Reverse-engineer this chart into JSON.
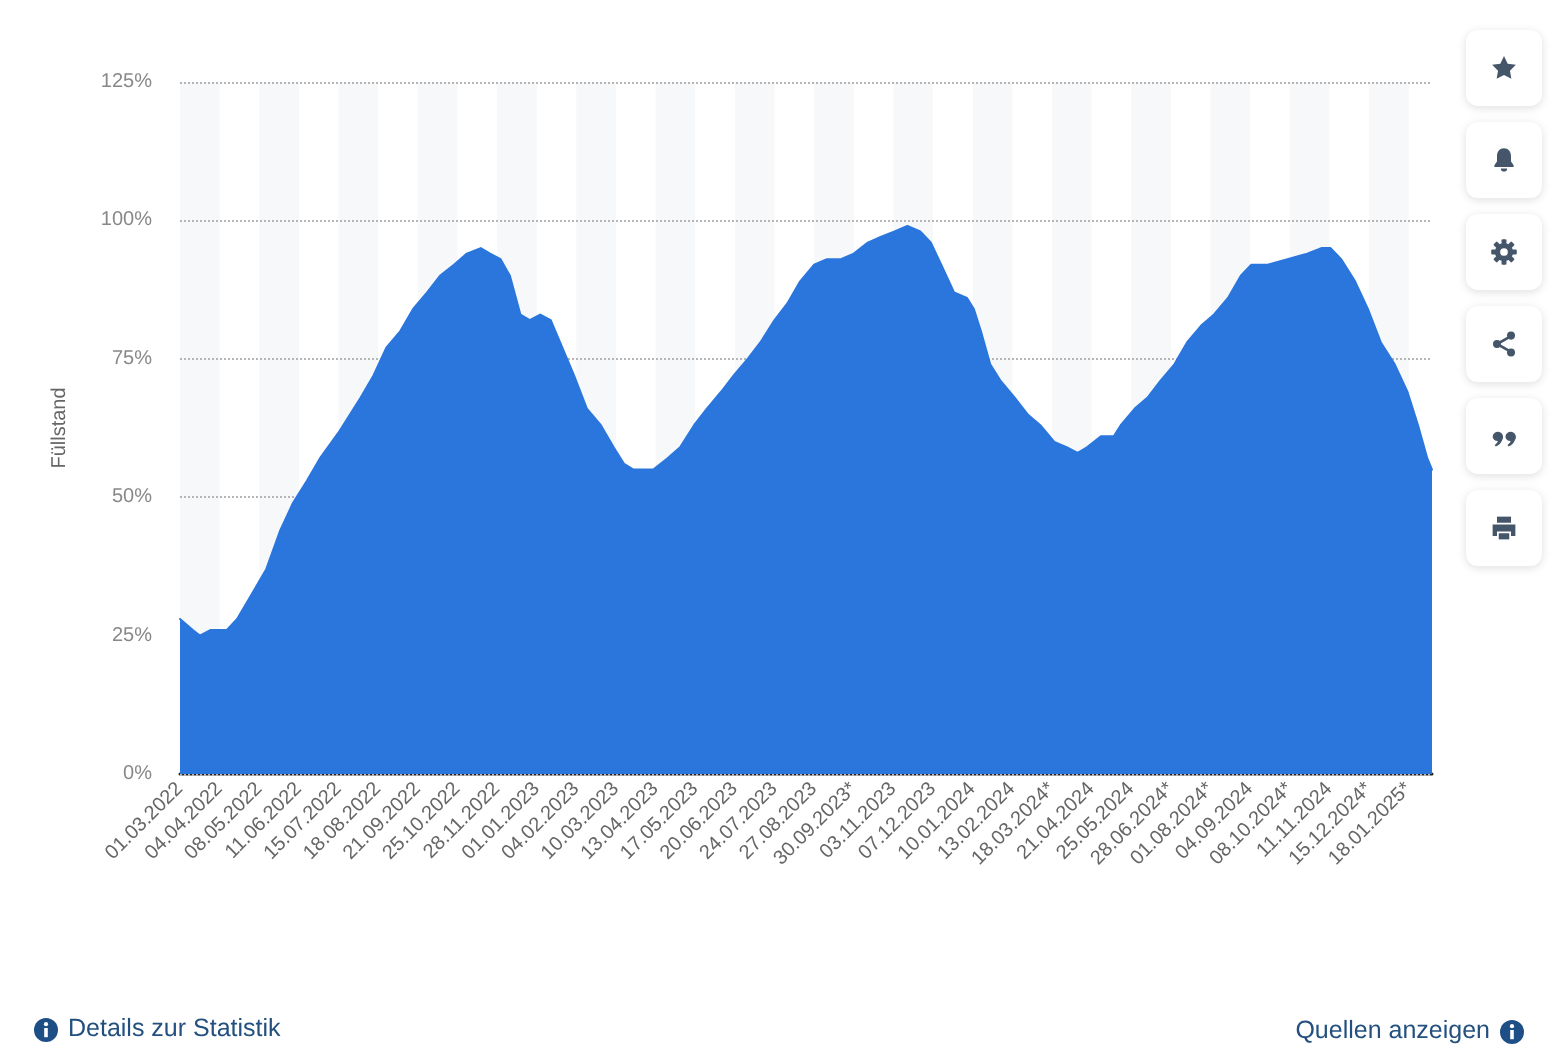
{
  "chart_data": {
    "type": "area",
    "ylabel": "Füllstand",
    "color": "#2a76dd",
    "x": [
      "2022-03-01",
      "2022-03-12",
      "2022-03-18",
      "2022-03-27",
      "2022-04-04",
      "2022-04-10",
      "2022-04-19",
      "2022-05-03",
      "2022-05-14",
      "2022-05-26",
      "2022-06-06",
      "2022-06-18",
      "2022-06-29",
      "2022-07-16",
      "2022-08-03",
      "2022-08-14",
      "2022-08-25",
      "2022-09-06",
      "2022-09-17",
      "2022-09-29",
      "2022-10-10",
      "2022-10-22",
      "2022-11-02",
      "2022-11-14",
      "2022-11-22",
      "2022-12-01",
      "2022-12-09",
      "2022-12-18",
      "2022-12-26",
      "2023-01-04",
      "2023-01-13",
      "2023-01-21",
      "2023-02-02",
      "2023-02-13",
      "2023-02-25",
      "2023-03-08",
      "2023-03-17",
      "2023-03-25",
      "2023-04-06",
      "2023-04-11",
      "2023-04-23",
      "2023-05-04",
      "2023-05-16",
      "2023-05-27",
      "2023-06-08",
      "2023-06-19",
      "2023-07-01",
      "2023-07-12",
      "2023-07-24",
      "2023-08-04",
      "2023-08-15",
      "2023-08-27",
      "2023-09-07",
      "2023-09-19",
      "2023-09-30",
      "2023-10-12",
      "2023-10-23",
      "2023-11-04",
      "2023-11-15",
      "2023-11-26",
      "2023-12-05",
      "2023-12-14",
      "2023-12-25",
      "2024-01-05",
      "2024-01-11",
      "2024-01-17",
      "2024-01-25",
      "2024-02-03",
      "2024-02-15",
      "2024-02-26",
      "2024-03-08",
      "2024-03-20",
      "2024-03-31",
      "2024-04-09",
      "2024-04-17",
      "2024-04-29",
      "2024-05-10",
      "2024-05-16",
      "2024-05-28",
      "2024-06-08",
      "2024-06-19",
      "2024-07-01",
      "2024-07-12",
      "2024-07-24",
      "2024-08-04",
      "2024-08-16",
      "2024-08-27",
      "2024-09-05",
      "2024-09-19",
      "2024-10-06",
      "2024-10-23",
      "2024-11-04",
      "2024-11-12",
      "2024-11-21",
      "2024-12-03",
      "2024-12-14",
      "2024-12-25",
      "2025-01-06",
      "2025-01-17",
      "2025-01-26",
      "2025-02-03",
      "2025-02-07"
    ],
    "values": [
      28,
      26,
      25,
      26,
      26,
      26,
      28,
      33,
      37,
      44,
      49,
      53,
      57,
      62,
      68,
      72,
      77,
      80,
      84,
      87,
      90,
      92,
      94,
      95,
      94,
      93,
      90,
      83,
      82,
      83,
      82,
      78,
      72,
      66,
      63,
      59,
      56,
      55,
      55,
      55,
      57,
      59,
      63,
      66,
      69,
      72,
      75,
      78,
      82,
      85,
      89,
      92,
      93,
      93,
      94,
      96,
      97,
      98,
      99,
      98,
      96,
      92,
      87,
      86,
      84,
      80,
      74,
      71,
      68,
      65,
      63,
      60,
      59,
      58,
      59,
      61,
      61,
      63,
      66,
      68,
      71,
      74,
      78,
      81,
      83,
      86,
      90,
      92,
      92,
      93,
      94,
      95,
      95,
      93,
      89,
      84,
      78,
      74,
      69,
      63,
      57,
      55
    ],
    "xlim": [
      "2022-03-01",
      "2025-02-07"
    ],
    "xticks": [
      {
        "value": "2022-03-01",
        "label": "01.03.2022"
      },
      {
        "value": "2022-04-04",
        "label": "04.04.2022"
      },
      {
        "value": "2022-05-08",
        "label": "08.05.2022"
      },
      {
        "value": "2022-06-11",
        "label": "11.06.2022"
      },
      {
        "value": "2022-07-15",
        "label": "15.07.2022"
      },
      {
        "value": "2022-08-18",
        "label": "18.08.2022"
      },
      {
        "value": "2022-09-21",
        "label": "21.09.2022"
      },
      {
        "value": "2022-10-25",
        "label": "25.10.2022"
      },
      {
        "value": "2022-11-28",
        "label": "28.11.2022"
      },
      {
        "value": "2023-01-01",
        "label": "01.01.2023"
      },
      {
        "value": "2023-02-04",
        "label": "04.02.2023"
      },
      {
        "value": "2023-03-10",
        "label": "10.03.2023"
      },
      {
        "value": "2023-04-13",
        "label": "13.04.2023"
      },
      {
        "value": "2023-05-17",
        "label": "17.05.2023"
      },
      {
        "value": "2023-06-20",
        "label": "20.06.2023"
      },
      {
        "value": "2023-07-24",
        "label": "24.07.2023"
      },
      {
        "value": "2023-08-27",
        "label": "27.08.2023"
      },
      {
        "value": "2023-09-30",
        "label": "30.09.2023*"
      },
      {
        "value": "2023-11-03",
        "label": "03.11.2023"
      },
      {
        "value": "2023-12-07",
        "label": "07.12.2023"
      },
      {
        "value": "2024-01-10",
        "label": "10.01.2024"
      },
      {
        "value": "2024-02-13",
        "label": "13.02.2024"
      },
      {
        "value": "2024-03-18",
        "label": "18.03.2024*"
      },
      {
        "value": "2024-04-21",
        "label": "21.04.2024"
      },
      {
        "value": "2024-05-25",
        "label": "25.05.2024"
      },
      {
        "value": "2024-06-28",
        "label": "28.06.2024*"
      },
      {
        "value": "2024-08-01",
        "label": "01.08.2024*"
      },
      {
        "value": "2024-09-04",
        "label": "04.09.2024"
      },
      {
        "value": "2024-10-08",
        "label": "08.10.2024*"
      },
      {
        "value": "2024-11-11",
        "label": "11.11.2024"
      },
      {
        "value": "2024-12-15",
        "label": "15.12.2024*"
      },
      {
        "value": "2025-01-18",
        "label": "18.01.2025*"
      }
    ],
    "ylim": [
      0,
      125
    ],
    "yticks": [
      {
        "value": 0,
        "label": "0%"
      },
      {
        "value": 25,
        "label": "25%"
      },
      {
        "value": 50,
        "label": "50%"
      },
      {
        "value": 75,
        "label": "75%"
      },
      {
        "value": 100,
        "label": "100%"
      },
      {
        "value": 125,
        "label": "125%"
      }
    ],
    "grid": true,
    "annotations": [
      "Details zur Statistik",
      "Quellen anzeigen"
    ]
  }
}
